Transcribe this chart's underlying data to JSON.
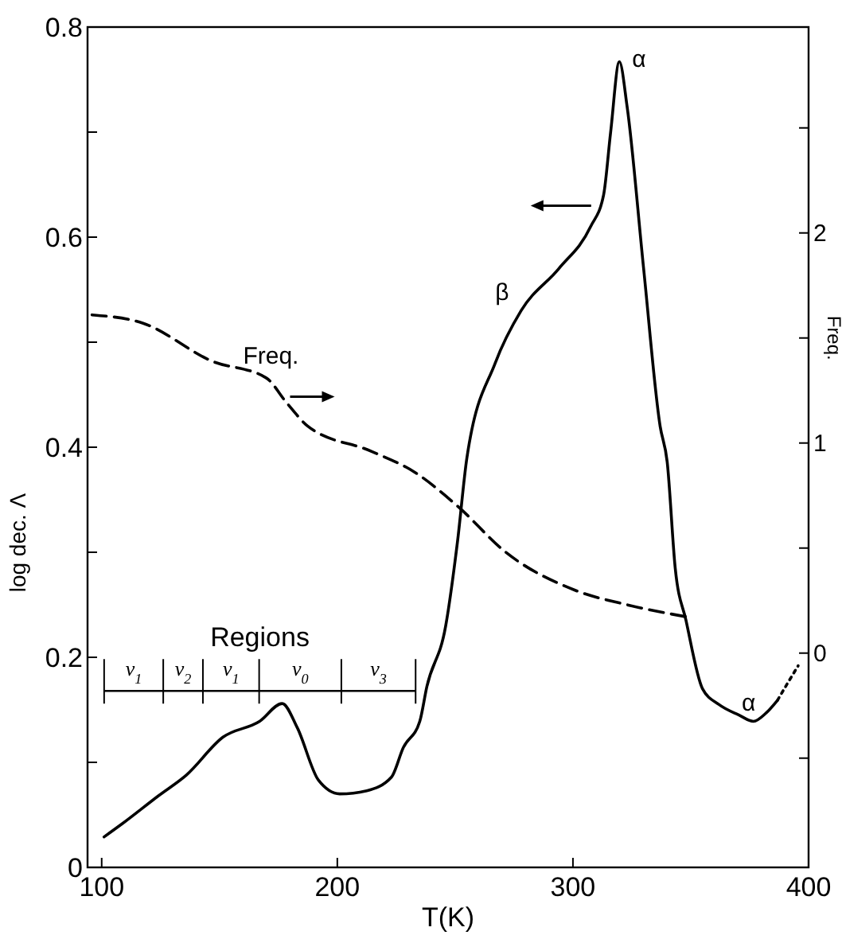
{
  "chart_data": {
    "type": "line",
    "xlabel": "T(K)",
    "ylabel": "log dec. Λ",
    "y2label": "Freq.",
    "xlim": [
      94,
      400
    ],
    "xticks": [
      100,
      200,
      {
        "value": 300,
        "label": "300"
      },
      400
    ],
    "ylim": [
      0,
      0.8
    ],
    "yticks": [
      0,
      {
        "value": 0.1,
        "label": null
      },
      0.2,
      {
        "value": 0.3,
        "label": null
      },
      0.4,
      {
        "value": 0.5,
        "label": null
      },
      0.6,
      {
        "value": 0.7,
        "label": null
      },
      0.8
    ],
    "y2lim": [
      -1.02,
      2.98
    ],
    "y2ticks": [
      {
        "value": -0.5,
        "label": null
      },
      0,
      {
        "value": 0.5,
        "label": null
      },
      1,
      {
        "value": 1.5,
        "label": null
      },
      2,
      {
        "value": 2.5,
        "label": null
      }
    ],
    "grid": false,
    "marker": "none",
    "series": [
      {
        "color": "#000000",
        "line_style": "solid",
        "x": [
          101,
          109,
          124,
          136,
          151.5,
          167,
          176.6,
          183,
          192,
          201,
          212.5,
          223,
          228,
          235,
          238,
          246,
          251,
          255,
          267,
          278,
          294,
          307.5,
          313,
          316,
          319.7,
          323,
          330,
          337,
          340,
          343.4,
          348,
          355,
          362,
          370.5,
          376.6,
          382,
          386.8
        ],
        "values": [
          0.029,
          0.042,
          0.068,
          0.088,
          0.124,
          0.139,
          0.156,
          0.133,
          0.083,
          0.07,
          0.073,
          0.086,
          0.114,
          0.139,
          0.172,
          0.23,
          0.31,
          0.39,
          0.48,
          0.53,
          0.57,
          0.61,
          0.64,
          0.7,
          0.767,
          0.724,
          0.57,
          0.42,
          0.386,
          0.285,
          0.235,
          0.17,
          0.155,
          0.145,
          0.139,
          0.147,
          0.159
        ]
      },
      {
        "color": "#000000",
        "line_style": "dotted",
        "x": [
          386.8,
          391,
          395.6
        ],
        "values": [
          0.159,
          0.175,
          0.192
        ]
      },
      {
        "color": "#000000",
        "line_style": "dashed",
        "axis": "y2",
        "x": [
          95.9,
          117.6,
          146.8,
          169.8,
          178.6,
          187.5,
          214.6,
          233,
          251,
          271.5,
          300.7,
          323,
          349.5
        ],
        "values": [
          1.61,
          1.57,
          1.39,
          1.31,
          1.19,
          1.08,
          0.96,
          0.86,
          0.7,
          0.48,
          0.3,
          0.23,
          0.17
        ]
      }
    ],
    "annotations": [
      "Freq.",
      {
        "text": "β",
        "x": 278,
        "y": 0.53
      },
      {
        "text": "α",
        "x": 319.7,
        "y": 0.767
      },
      {
        "text": "α",
        "x": 376.6,
        "y": 0.139
      },
      "Regions",
      "ν$_{1}$",
      "ν$_{2}$",
      "ν$_{1}$",
      "ν$_{0}$",
      "ν$_{3}$"
    ]
  }
}
